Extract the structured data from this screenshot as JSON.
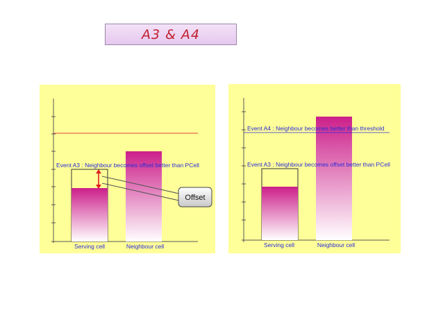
{
  "slide": {
    "title": "A3 & A4"
  },
  "left_diagram": {
    "event_label": "Event A3 : Neighbour becomes offset better than PCell",
    "callout_label": "Offset",
    "serving_label": "Serving cell",
    "neighbour_label": "Neighbour cell"
  },
  "right_diagram": {
    "a4_label": "Event A4 : Neighbour becomes better than threshold",
    "a3_label": "Event A3 : Neighbour becomes offset better than PCell",
    "serving_label": "Serving cell",
    "neighbour_label": "Neighbour cell"
  },
  "colors": {
    "panel_bg": "#ffff99",
    "title_text": "#c0202e",
    "label_blue": "#2b2bd6",
    "threshold_line": "#e0403a",
    "offset_arrow": "#e02020",
    "bar_top": "#cc1f8a",
    "bar_bottom": "#ffffff"
  }
}
